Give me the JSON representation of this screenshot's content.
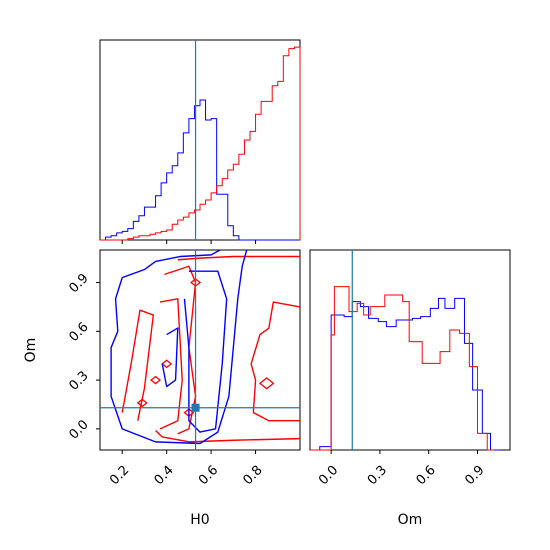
{
  "chart_data": [
    {
      "panel": "H0 marginal",
      "type": "histogram",
      "xlim": [
        0.1,
        1.0
      ],
      "series": [
        {
          "color": "#0000ff",
          "bin_edges": [
            0.1,
            0.125,
            0.15,
            0.175,
            0.2,
            0.225,
            0.25,
            0.275,
            0.3,
            0.325,
            0.35,
            0.375,
            0.4,
            0.425,
            0.45,
            0.475,
            0.5,
            0.525,
            0.55,
            0.575,
            0.6,
            0.625,
            0.65,
            0.675,
            0.7,
            0.725,
            0.75,
            0.775,
            0.8,
            0.825,
            0.85,
            0.875,
            0.9,
            0.925,
            0.95,
            0.975,
            1.0
          ],
          "counts": [
            0.0,
            0.02,
            0.03,
            0.05,
            0.06,
            0.08,
            0.13,
            0.17,
            0.23,
            0.23,
            0.31,
            0.4,
            0.47,
            0.52,
            0.61,
            0.75,
            0.85,
            0.94,
            0.98,
            0.84,
            0.85,
            0.32,
            0.32,
            0.1,
            0.03,
            0.0,
            0,
            0,
            0,
            0,
            0,
            0,
            0,
            0,
            0,
            0
          ]
        },
        {
          "color": "#ff0000",
          "bin_edges": [
            0.1,
            0.125,
            0.15,
            0.175,
            0.2,
            0.225,
            0.25,
            0.275,
            0.3,
            0.325,
            0.35,
            0.375,
            0.4,
            0.425,
            0.45,
            0.475,
            0.5,
            0.525,
            0.55,
            0.575,
            0.6,
            0.625,
            0.65,
            0.675,
            0.7,
            0.725,
            0.75,
            0.775,
            0.8,
            0.825,
            0.85,
            0.875,
            0.9,
            0.925,
            0.95,
            0.975,
            1.0
          ],
          "counts": [
            0,
            0,
            0,
            0,
            0.0,
            0.01,
            0.02,
            0.03,
            0.03,
            0.04,
            0.05,
            0.06,
            0.07,
            0.11,
            0.14,
            0.16,
            0.19,
            0.21,
            0.25,
            0.28,
            0.33,
            0.38,
            0.43,
            0.49,
            0.53,
            0.6,
            0.7,
            0.76,
            0.88,
            0.97,
            0.97,
            1.08,
            1.11,
            1.29,
            1.34,
            1.35
          ]
        }
      ],
      "reference_lines": [
        {
          "axis": "x",
          "value": 0.53,
          "color": "#1f77b4"
        }
      ]
    },
    {
      "panel": "H0 vs Om joint",
      "type": "contour",
      "xlabel": "H0",
      "ylabel": "Om",
      "xlim": [
        0.1,
        1.0
      ],
      "ylim": [
        -0.13,
        1.1
      ],
      "xticks": [
        "0.2",
        "0.4",
        "0.6",
        "0.8"
      ],
      "yticks": [
        "0.0",
        "0.3",
        "0.6",
        "0.9"
      ],
      "contours": [
        {
          "color": "#ff0000",
          "levels": [
            {
              "points": [
                [
                  0.35,
                  -0.01
                ],
                [
                  0.38,
                  -0.05
                ],
                [
                  0.5,
                  -0.08
                ],
                [
                  0.7,
                  -0.07
                ],
                [
                  1.0,
                  -0.06
                ]
              ]
            },
            {
              "points": [
                [
                  0.45,
                  1.04
                ],
                [
                  0.55,
                  1.05
                ],
                [
                  0.7,
                  1.06
                ],
                [
                  0.85,
                  1.06
                ],
                [
                  1.0,
                  1.06
                ]
              ]
            },
            {
              "points": [
                [
                  0.39,
                  0.95
                ],
                [
                  0.5,
                  1.0
                ],
                [
                  0.53,
                  0.9
                ],
                [
                  0.5,
                  0.5
                ],
                [
                  0.53,
                  0.2
                ],
                [
                  0.5,
                  0.0
                ],
                [
                  0.45,
                  -0.03
                ]
              ]
            },
            {
              "points": [
                [
                  0.37,
                  0.78
                ],
                [
                  0.45,
                  0.8
                ],
                [
                  0.47,
                  0.3
                ],
                [
                  0.45,
                  0.05
                ],
                [
                  0.37,
                  0.0
                ]
              ]
            },
            {
              "points": [
                [
                  0.27,
                  0.05
                ],
                [
                  0.3,
                  0.25
                ],
                [
                  0.34,
                  0.7
                ],
                [
                  0.28,
                  0.73
                ],
                [
                  0.24,
                  0.4
                ],
                [
                  0.2,
                  0.1
                ]
              ]
            },
            {
              "points": [
                [
                  1.0,
                  0.75
                ],
                [
                  0.88,
                  0.78
                ],
                [
                  0.86,
                  0.62
                ],
                [
                  0.82,
                  0.58
                ],
                [
                  0.78,
                  0.4
                ],
                [
                  0.8,
                  0.3
                ],
                [
                  0.79,
                  0.1
                ],
                [
                  0.86,
                  0.05
                ],
                [
                  1.0,
                  0.05
                ]
              ]
            }
          ],
          "blobs": [
            {
              "x": 0.5,
              "y": 0.1,
              "r": 0.02
            },
            {
              "x": 0.53,
              "y": 0.9,
              "r": 0.02
            },
            {
              "x": 0.85,
              "y": 0.28,
              "r": 0.03
            },
            {
              "x": 0.29,
              "y": 0.16,
              "r": 0.02
            },
            {
              "x": 0.4,
              "y": 0.4,
              "r": 0.02
            },
            {
              "x": 0.35,
              "y": 0.3,
              "r": 0.02
            }
          ]
        },
        {
          "color": "#0000ff",
          "levels": [
            {
              "points": [
                [
                  0.64,
                  1.1
                ],
                [
                  0.6,
                  1.07
                ],
                [
                  0.46,
                  1.06
                ],
                [
                  0.35,
                  1.03
                ],
                [
                  0.3,
                  0.98
                ],
                [
                  0.2,
                  0.93
                ],
                [
                  0.17,
                  0.8
                ],
                [
                  0.18,
                  0.6
                ],
                [
                  0.15,
                  0.5
                ],
                [
                  0.15,
                  0.2
                ],
                [
                  0.2,
                  0.0
                ],
                [
                  0.35,
                  -0.08
                ],
                [
                  0.55,
                  -0.09
                ],
                [
                  0.63,
                  -0.02
                ],
                [
                  0.68,
                  0.2
                ],
                [
                  0.7,
                  0.5
                ],
                [
                  0.72,
                  0.8
                ],
                [
                  0.74,
                  1.0
                ],
                [
                  0.76,
                  1.1
                ]
              ]
            },
            {
              "points": [
                [
                  0.5,
                  0.97
                ],
                [
                  0.63,
                  0.97
                ],
                [
                  0.67,
                  0.8
                ],
                [
                  0.65,
                  0.4
                ],
                [
                  0.62,
                  0.0
                ],
                [
                  0.55,
                  -0.02
                ],
                [
                  0.5,
                  0.05
                ],
                [
                  0.5,
                  0.5
                ],
                [
                  0.48,
                  0.8
                ]
              ]
            },
            {
              "points": [
                [
                  0.4,
                  0.58
                ],
                [
                  0.45,
                  0.62
                ],
                [
                  0.44,
                  0.3
                ],
                [
                  0.4,
                  0.26
                ],
                [
                  0.38,
                  0.4
                ]
              ]
            }
          ]
        }
      ],
      "reference_lines": [
        {
          "axis": "x",
          "value": 0.53,
          "color": "#1f77b4"
        },
        {
          "axis": "y",
          "value": 0.13,
          "color": "#1f77b4"
        }
      ],
      "marker": {
        "x": 0.53,
        "y": 0.13,
        "color": "#1f77b4"
      }
    },
    {
      "panel": "Om marginal",
      "type": "histogram",
      "xlabel": "Om",
      "xlim": [
        -0.13,
        1.1
      ],
      "xticks": [
        "0.0",
        "0.3",
        "0.6",
        "0.9"
      ],
      "series": [
        {
          "color": "#0000ff",
          "bin_edges": [
            -0.13,
            -0.07,
            0.0,
            0.02,
            0.08,
            0.13,
            0.18,
            0.23,
            0.29,
            0.34,
            0.4,
            0.45,
            0.5,
            0.55,
            0.61,
            0.66,
            0.7,
            0.76,
            0.82,
            0.87,
            0.93,
            0.98,
            1.04
          ],
          "counts": [
            0.0,
            0.02,
            0.81,
            0.81,
            0.8,
            0.89,
            0.86,
            0.79,
            0.77,
            0.74,
            0.78,
            0.78,
            0.79,
            0.8,
            0.85,
            0.91,
            0.85,
            0.91,
            0.64,
            0.36,
            0.1,
            0.0
          ]
        },
        {
          "color": "#ff0000",
          "bin_edges": [
            -0.13,
            -0.07,
            0.0,
            0.02,
            0.07,
            0.11,
            0.16,
            0.2,
            0.24,
            0.28,
            0.33,
            0.39,
            0.44,
            0.48,
            0.52,
            0.56,
            0.61,
            0.67,
            0.73,
            0.79,
            0.85,
            0.9,
            0.96,
            1.0
          ],
          "counts": [
            0.0,
            0.0,
            0.69,
            0.98,
            0.98,
            0.83,
            0.88,
            0.81,
            0.86,
            0.86,
            0.93,
            0.93,
            0.89,
            0.65,
            0.65,
            0.52,
            0.52,
            0.59,
            0.72,
            0.7,
            0.5,
            0.1,
            0.0
          ]
        }
      ],
      "reference_lines": [
        {
          "axis": "x",
          "value": 0.13,
          "color": "#1f77b4"
        }
      ]
    }
  ]
}
